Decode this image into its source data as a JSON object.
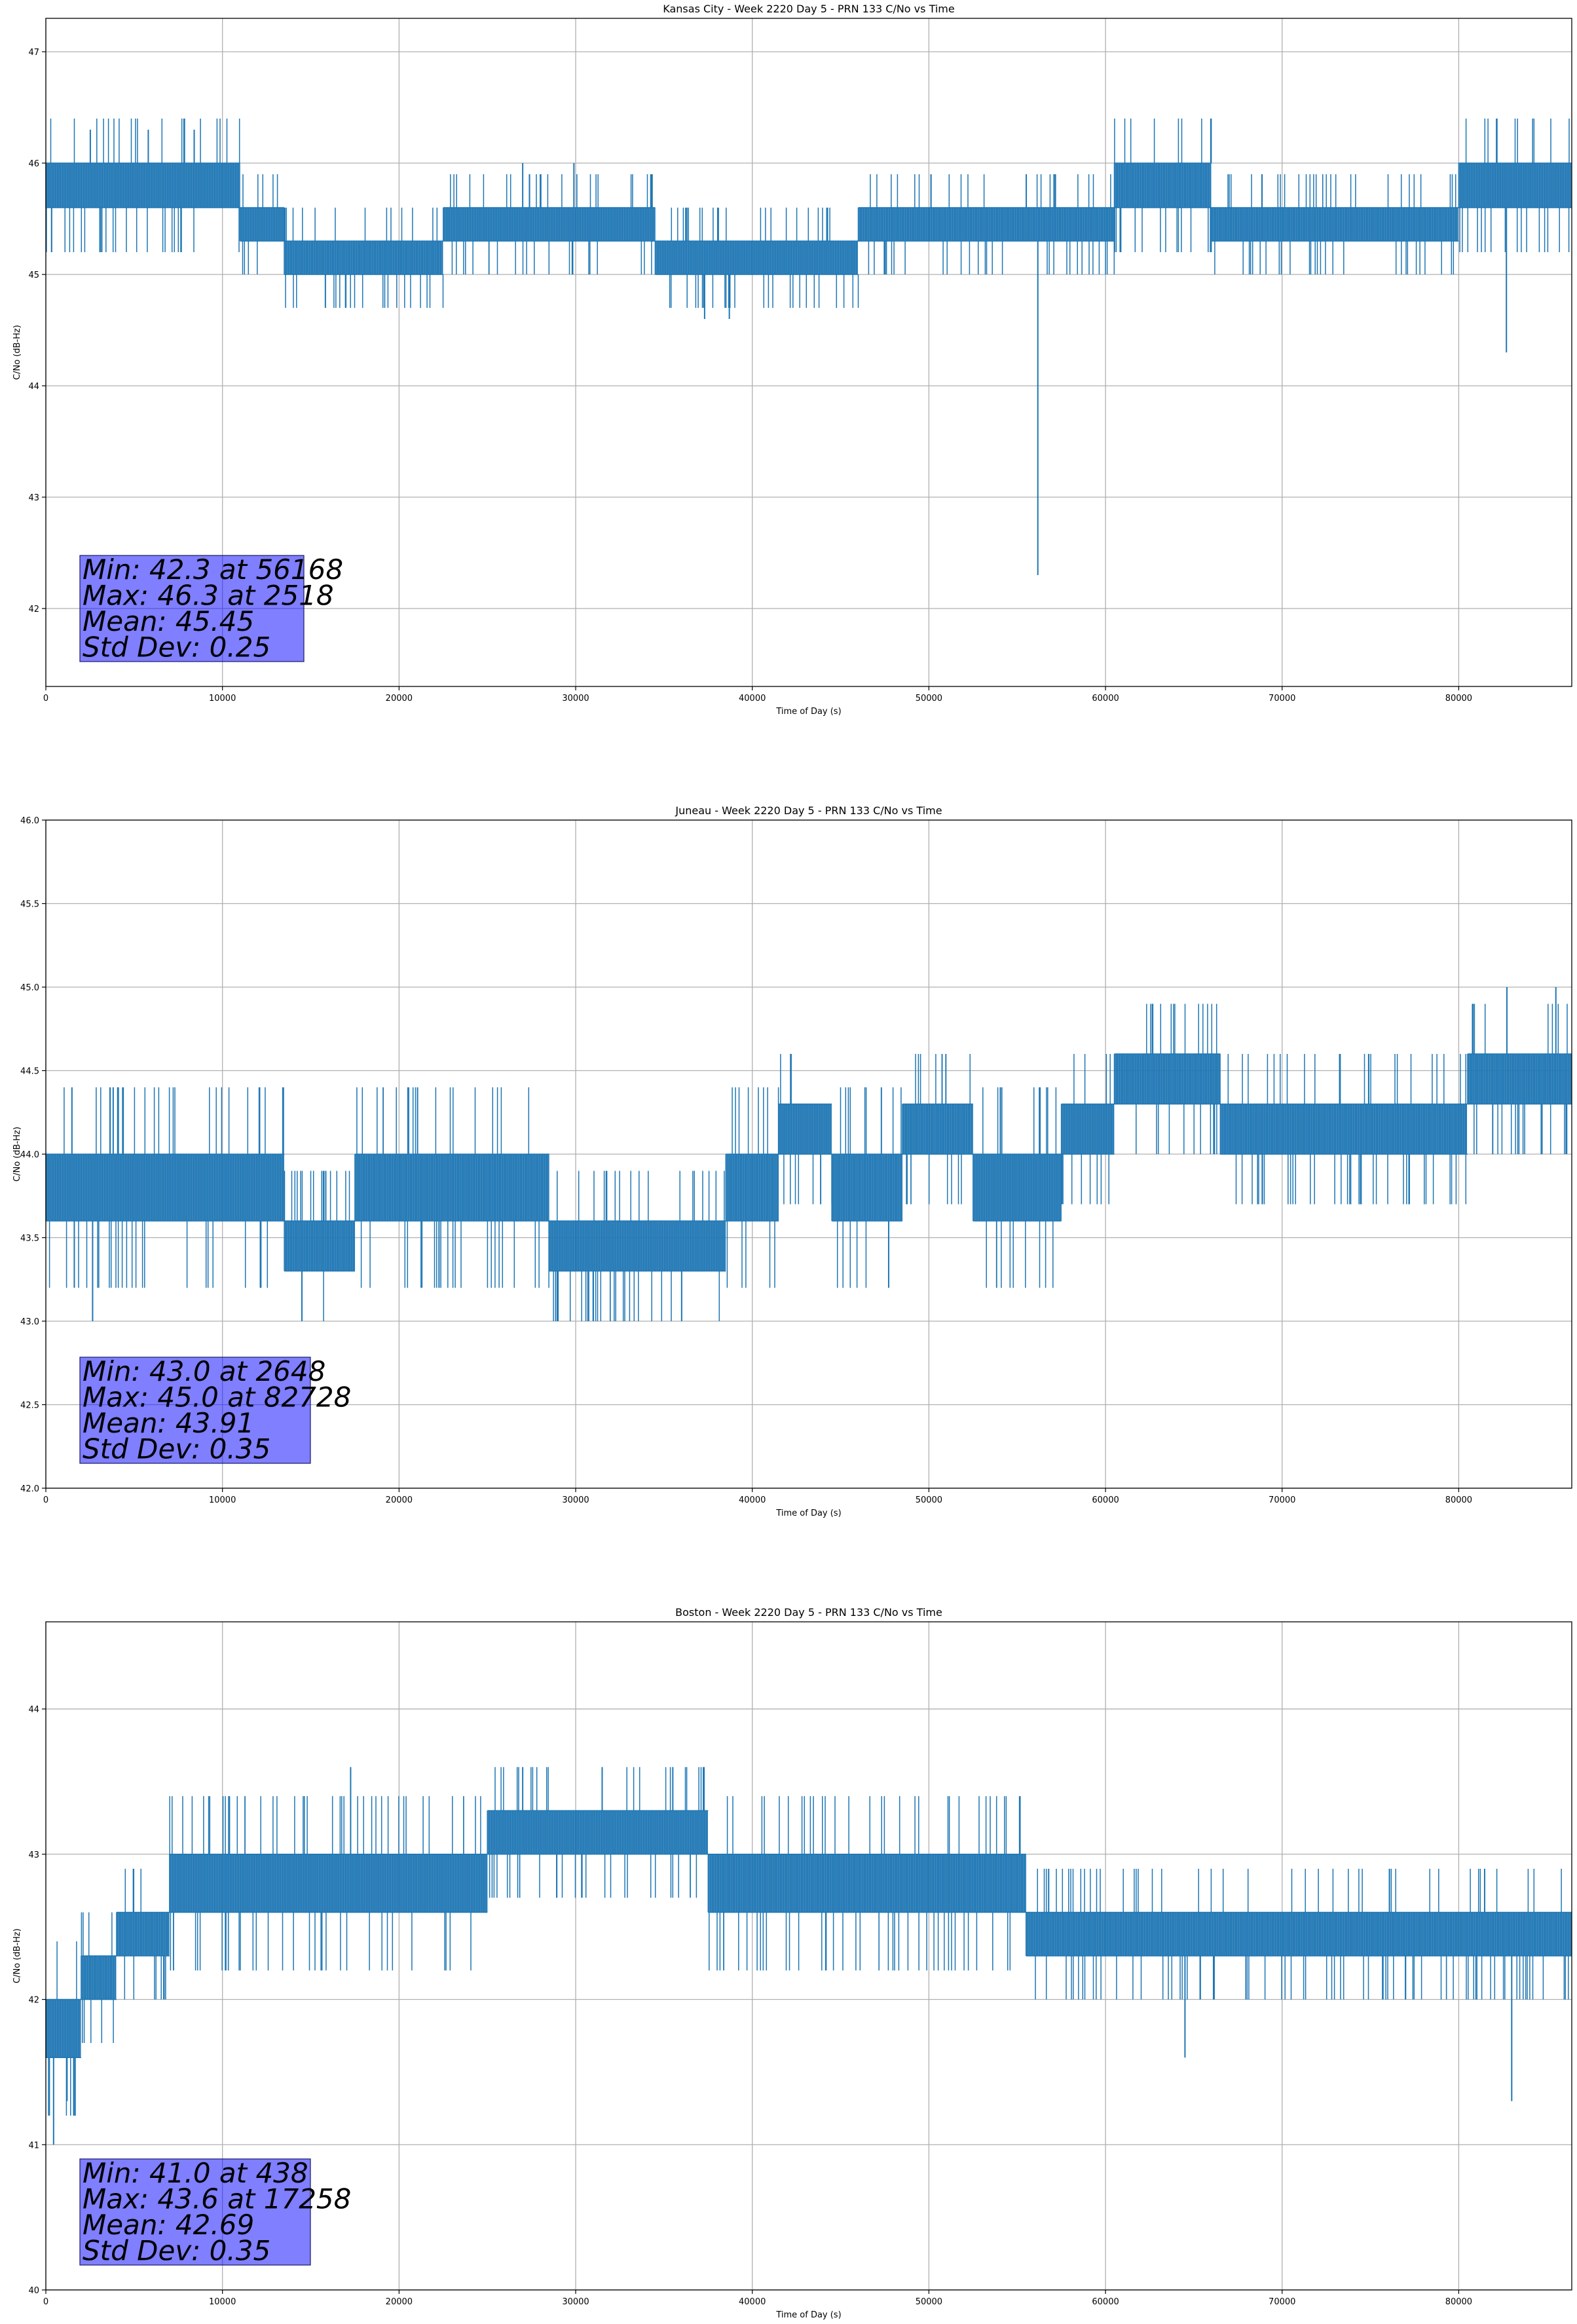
{
  "chart_data": [
    {
      "type": "line",
      "title": "Kansas City - Week 2220 Day 5 - PRN 133 C/No vs Time",
      "xlabel": "Time of Day (s)",
      "ylabel": "C/No (dB-Hz)",
      "xlim": [
        0,
        86400
      ],
      "ylim": [
        41.3,
        47.3
      ],
      "xticks": [
        0,
        10000,
        20000,
        30000,
        40000,
        50000,
        60000,
        70000,
        80000
      ],
      "yticks": [
        42,
        43,
        44,
        45,
        46,
        47
      ],
      "grid": true,
      "color": "#1f77b4",
      "bands": [
        {
          "x": [
            0,
            11000
          ],
          "y": [
            45.6,
            46.0
          ]
        },
        {
          "x": [
            11000,
            13500
          ],
          "y": [
            45.3,
            45.6
          ]
        },
        {
          "x": [
            13500,
            22500
          ],
          "y": [
            45.0,
            45.3
          ]
        },
        {
          "x": [
            22500,
            34500
          ],
          "y": [
            45.3,
            45.6
          ]
        },
        {
          "x": [
            34500,
            46000
          ],
          "y": [
            45.0,
            45.3
          ]
        },
        {
          "x": [
            46000,
            60500
          ],
          "y": [
            45.3,
            45.6
          ]
        },
        {
          "x": [
            60500,
            66000
          ],
          "y": [
            45.6,
            46.0
          ]
        },
        {
          "x": [
            66000,
            80000
          ],
          "y": [
            45.3,
            45.6
          ]
        },
        {
          "x": [
            80000,
            86400
          ],
          "y": [
            45.6,
            46.0
          ]
        }
      ],
      "spikes": [
        {
          "x": 2518,
          "y": 46.3
        },
        {
          "x": 5800,
          "y": 46.3
        },
        {
          "x": 8400,
          "y": 46.3
        },
        {
          "x": 27000,
          "y": 46.0
        },
        {
          "x": 29900,
          "y": 46.0
        },
        {
          "x": 37300,
          "y": 44.6
        },
        {
          "x": 38700,
          "y": 44.6
        },
        {
          "x": 56168,
          "y": 42.3
        },
        {
          "x": 82700,
          "y": 44.3
        }
      ],
      "stats": {
        "min": "Min: 42.3 at 56168",
        "max": "Max: 46.3 at 2518",
        "mean": "Mean: 45.45",
        "std": "Std Dev: 0.25"
      }
    },
    {
      "type": "line",
      "title": "Juneau - Week 2220 Day 5 - PRN 133 C/No vs Time",
      "xlabel": "Time of Day (s)",
      "ylabel": "C/No (dB-Hz)",
      "xlim": [
        0,
        86400
      ],
      "ylim": [
        42.0,
        46.0
      ],
      "xticks": [
        0,
        10000,
        20000,
        30000,
        40000,
        50000,
        60000,
        70000,
        80000
      ],
      "yticks": [
        42.0,
        42.5,
        43.0,
        43.5,
        44.0,
        44.5,
        45.0,
        45.5,
        46.0
      ],
      "grid": true,
      "color": "#1f77b4",
      "bands": [
        {
          "x": [
            0,
            13500
          ],
          "y": [
            43.6,
            44.0
          ]
        },
        {
          "x": [
            13500,
            17500
          ],
          "y": [
            43.3,
            43.6
          ]
        },
        {
          "x": [
            17500,
            28500
          ],
          "y": [
            43.6,
            44.0
          ]
        },
        {
          "x": [
            28500,
            38500
          ],
          "y": [
            43.3,
            43.6
          ]
        },
        {
          "x": [
            38500,
            41500
          ],
          "y": [
            43.6,
            44.0
          ]
        },
        {
          "x": [
            41500,
            44500
          ],
          "y": [
            44.0,
            44.3
          ]
        },
        {
          "x": [
            44500,
            48500
          ],
          "y": [
            43.6,
            44.0
          ]
        },
        {
          "x": [
            48500,
            52500
          ],
          "y": [
            44.0,
            44.3
          ]
        },
        {
          "x": [
            52500,
            57500
          ],
          "y": [
            43.6,
            44.0
          ]
        },
        {
          "x": [
            57500,
            60500
          ],
          "y": [
            44.0,
            44.3
          ]
        },
        {
          "x": [
            60500,
            66500
          ],
          "y": [
            44.3,
            44.6
          ]
        },
        {
          "x": [
            66500,
            80500
          ],
          "y": [
            44.0,
            44.3
          ]
        },
        {
          "x": [
            80500,
            86400
          ],
          "y": [
            44.3,
            44.6
          ]
        }
      ],
      "spikes": [
        {
          "x": 2648,
          "y": 43.0
        },
        {
          "x": 14500,
          "y": 43.0
        },
        {
          "x": 29000,
          "y": 43.0
        },
        {
          "x": 31000,
          "y": 43.0
        },
        {
          "x": 36000,
          "y": 43.0
        },
        {
          "x": 82728,
          "y": 45.0
        },
        {
          "x": 85500,
          "y": 45.0
        }
      ],
      "stats": {
        "min": "Min: 43.0 at 2648",
        "max": "Max: 45.0 at 82728",
        "mean": "Mean: 43.91",
        "std": "Std Dev: 0.35"
      }
    },
    {
      "type": "line",
      "title": "Boston - Week 2220 Day 5 - PRN 133 C/No vs Time",
      "xlabel": "Time of Day (s)",
      "ylabel": "C/No (dB-Hz)",
      "xlim": [
        0,
        86400
      ],
      "ylim": [
        40.0,
        44.6
      ],
      "xticks": [
        0,
        10000,
        20000,
        30000,
        40000,
        50000,
        60000,
        70000,
        80000
      ],
      "yticks": [
        40,
        41,
        42,
        43,
        44
      ],
      "grid": true,
      "color": "#1f77b4",
      "bands": [
        {
          "x": [
            0,
            2000
          ],
          "y": [
            41.6,
            42.0
          ]
        },
        {
          "x": [
            2000,
            4000
          ],
          "y": [
            42.0,
            42.3
          ]
        },
        {
          "x": [
            4000,
            7000
          ],
          "y": [
            42.3,
            42.6
          ]
        },
        {
          "x": [
            7000,
            25000
          ],
          "y": [
            42.6,
            43.0
          ]
        },
        {
          "x": [
            25000,
            37500
          ],
          "y": [
            43.0,
            43.3
          ]
        },
        {
          "x": [
            37500,
            55500
          ],
          "y": [
            42.6,
            43.0
          ]
        },
        {
          "x": [
            55500,
            86400
          ],
          "y": [
            42.3,
            42.6
          ]
        }
      ],
      "spikes": [
        {
          "x": 438,
          "y": 41.0
        },
        {
          "x": 1200,
          "y": 41.3
        },
        {
          "x": 17258,
          "y": 43.6
        },
        {
          "x": 27000,
          "y": 43.6
        },
        {
          "x": 31500,
          "y": 43.6
        },
        {
          "x": 35500,
          "y": 43.6
        },
        {
          "x": 64500,
          "y": 41.6
        },
        {
          "x": 83000,
          "y": 41.3
        }
      ],
      "stats": {
        "min": "Min: 41.0 at 438",
        "max": "Max: 43.6 at 17258",
        "mean": "Mean: 42.69",
        "std": "Std Dev: 0.35"
      }
    }
  ]
}
